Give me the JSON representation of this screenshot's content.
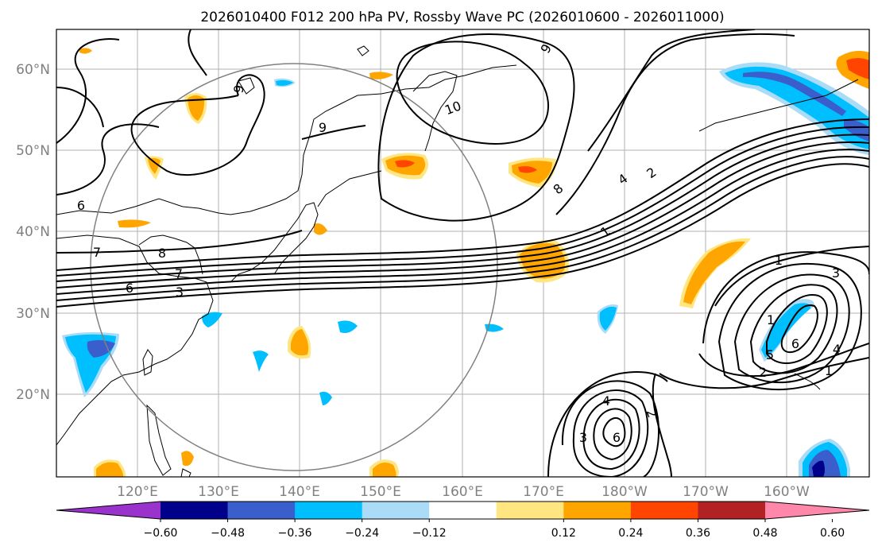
{
  "title": "2026010400 F012 200 hPa PV, Rossby Wave PC (2026010600 - 2026011000)",
  "lat_labels": [
    "20°N",
    "30°N",
    "40°N",
    "50°N",
    "60°N"
  ],
  "lon_labels": [
    "120°E",
    "130°E",
    "140°E",
    "150°E",
    "160°E",
    "170°E",
    "180°W",
    "170°W",
    "160°W"
  ],
  "colorbar": {
    "tick_labels": [
      "−0.60",
      "−0.48",
      "−0.36",
      "−0.24",
      "−0.12",
      "0.12",
      "0.24",
      "0.36",
      "0.48",
      "0.60"
    ],
    "colors": [
      "#9933cc",
      "#00008b",
      "#3a5fcd",
      "#00bfff",
      "#aadcf8",
      "#ffffff",
      "#ffe680",
      "#ffa500",
      "#ff4500",
      "#b22222",
      "#ff88aa"
    ]
  },
  "contour_labels": [
    "9",
    "10",
    "9",
    "9",
    "8",
    "4",
    "2",
    "1",
    "6",
    "7",
    "8",
    "7",
    "6",
    "3",
    "1",
    "3",
    "1",
    "6",
    "4",
    "2",
    "1",
    "3",
    "4",
    "6",
    "2",
    "5"
  ]
}
